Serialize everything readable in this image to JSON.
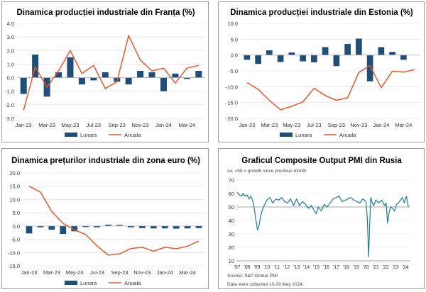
{
  "colors": {
    "bar": "#1f4e79",
    "line": "#e8572a",
    "pmi": "#1e7b8f",
    "grid": "#d9d9d9",
    "axis": "#b0b0b0"
  },
  "chart_data": [
    {
      "type": "bar+line",
      "title": "Dinamica producției industriale din Franța (%)",
      "categories": [
        "Jan-23",
        "Feb-23",
        "Mar-23",
        "Apr-23",
        "May-23",
        "Jun-23",
        "Jul-23",
        "Aug-23",
        "Sep-23",
        "Oct-23",
        "Nov-23",
        "Dec-23",
        "Jan-24",
        "Feb-24",
        "Mar-24",
        "Apr-24"
      ],
      "x_tick_labels": [
        "Jan-23",
        "Mar-23",
        "May-23",
        "Jul-23",
        "Sep-23",
        "Nov-23",
        "Jan-24",
        "Mar-24"
      ],
      "series": [
        {
          "name": "Lunara",
          "type": "bar",
          "values": [
            -1.2,
            1.7,
            -1.4,
            0.4,
            1.5,
            -0.5,
            -0.2,
            0.4,
            -0.3,
            -0.5,
            0.5,
            0.4,
            -1.0,
            0.3,
            -0.1,
            0.5
          ]
        },
        {
          "name": "Anuala",
          "type": "line",
          "values": [
            -2.4,
            0.8,
            -0.7,
            0.5,
            2.0,
            0.3,
            0.9,
            -0.8,
            -0.3,
            3.1,
            1.3,
            0.5,
            0.7,
            -0.4,
            0.7,
            0.9
          ]
        }
      ],
      "ylim": [
        -3.0,
        4.0
      ],
      "yticks": [
        -3.0,
        -2.0,
        -1.0,
        0.0,
        1.0,
        2.0,
        3.0,
        4.0
      ],
      "ytick_labels": [
        "-3.0",
        "-2.0",
        "-1.0",
        "0.0",
        "1.0",
        "2.0",
        "3.0",
        "4.0"
      ],
      "legend": [
        "Lunara",
        "Anuala"
      ]
    },
    {
      "type": "bar+line",
      "title": "Dinamica producției industriale din Estonia (%)",
      "categories": [
        "Jan-23",
        "Feb-23",
        "Mar-23",
        "Apr-23",
        "May-23",
        "Jun-23",
        "Jul-23",
        "Aug-23",
        "Sep-23",
        "Oct-23",
        "Nov-23",
        "Dec-23",
        "Jan-24",
        "Feb-24",
        "Mar-24",
        "Apr-24"
      ],
      "x_tick_labels": [
        "Jan-23",
        "Mar-23",
        "May-23",
        "Jul-23",
        "Sep-23",
        "Nov-23",
        "Jan-24",
        "Mar-24"
      ],
      "series": [
        {
          "name": "Lunara",
          "type": "bar",
          "values": [
            -1.5,
            -2.8,
            1.5,
            -2.2,
            0.8,
            -2.0,
            -2.3,
            2.5,
            -3.5,
            3.5,
            5.2,
            -8.3,
            2.5,
            1.0,
            -1.5,
            0
          ]
        },
        {
          "name": "Anuala",
          "type": "line",
          "values": [
            -8.7,
            -10.8,
            -14.3,
            -17.3,
            -16.2,
            -14.8,
            -10.5,
            -12.8,
            -14.3,
            -13.5,
            -5.5,
            -3.3,
            -10.3,
            -5.1,
            -5.4,
            -4.6
          ]
        }
      ],
      "ylim": [
        -20.0,
        10.0
      ],
      "yticks": [
        -20.0,
        -15.0,
        -10.0,
        -5.0,
        0.0,
        5.0,
        10.0
      ],
      "ytick_labels": [
        "-20.0",
        "-15.0",
        "-10.0",
        "-5.0",
        "0.0",
        "5.0",
        "10.0"
      ],
      "legend": [
        "Lunara",
        "Anuala"
      ]
    },
    {
      "type": "bar+line",
      "title": "Dinamica prețurilor industriale din zona euro (%)",
      "categories": [
        "Jan-23",
        "Feb-23",
        "Mar-23",
        "Apr-23",
        "May-23",
        "Jun-23",
        "Jul-23",
        "Aug-23",
        "Sep-23",
        "Oct-23",
        "Nov-23",
        "Dec-23",
        "Jan-24",
        "Feb-24",
        "Mar-24",
        "Apr-24"
      ],
      "x_tick_labels": [
        "Jan-23",
        "Mar-23",
        "May-23",
        "Jul-23",
        "Sep-23",
        "Nov-23",
        "Jan-24",
        "Mar-24"
      ],
      "series": [
        {
          "name": "Lunara",
          "type": "bar",
          "values": [
            -2.8,
            -0.5,
            -1.4,
            -3.0,
            -2.0,
            -0.4,
            -0.5,
            0.5,
            0.4,
            -0.5,
            -0.8,
            -0.9,
            -0.9,
            -1.0,
            -0.9,
            -0.8
          ]
        },
        {
          "name": "Anuala",
          "type": "line",
          "values": [
            15.0,
            12.8,
            5.5,
            1.0,
            -1.5,
            -3.2,
            -7.5,
            -11.0,
            -10.5,
            -8.5,
            -8.0,
            -9.5,
            -8.0,
            -8.6,
            -7.6,
            -5.7
          ]
        }
      ],
      "ylim": [
        -15.0,
        20.0
      ],
      "yticks": [
        -15.0,
        -10.0,
        -5.0,
        0.0,
        5.0,
        10.0,
        15.0,
        20.0
      ],
      "ytick_labels": [
        "-15.0",
        "-10.0",
        "-5.0",
        "0.0",
        "5.0",
        "10.0",
        "15.0",
        "20.0"
      ],
      "legend": [
        "Lunara",
        "Anuala"
      ]
    },
    {
      "type": "line",
      "title": "Graficul Composite Output PMI din Rusia",
      "subtitle": "sa, >50 = growth since previous month",
      "xlim": [
        2007,
        2024.5
      ],
      "x_tick_values": [
        2007,
        2008,
        2009,
        2010,
        2011,
        2012,
        2013,
        2014,
        2015,
        2016,
        2017,
        2018,
        2019,
        2020,
        2021,
        2022,
        2023,
        2024
      ],
      "x_tick_labels": [
        "'07",
        "'08",
        "'09",
        "'10",
        "'11",
        "'12",
        "'13",
        "'14",
        "'15",
        "'16",
        "'17",
        "'18",
        "'19",
        "'20",
        "'21",
        "'22",
        "'23",
        "'24"
      ],
      "ylim": [
        10,
        70
      ],
      "yticks": [
        10,
        20,
        30,
        40,
        50,
        60,
        70
      ],
      "ytick_labels": [
        "10",
        "20",
        "30",
        "40",
        "50",
        "60",
        "70"
      ],
      "reference_line": 50,
      "series": [
        {
          "name": "Composite Output PMI",
          "x": [
            2007.0,
            2007.2,
            2007.4,
            2007.6,
            2007.8,
            2008.0,
            2008.2,
            2008.4,
            2008.6,
            2008.75,
            2008.85,
            2008.95,
            2009.05,
            2009.2,
            2009.4,
            2009.6,
            2009.8,
            2010.0,
            2010.3,
            2010.6,
            2010.9,
            2011.2,
            2011.5,
            2011.8,
            2012.1,
            2012.4,
            2012.7,
            2013.0,
            2013.3,
            2013.6,
            2013.9,
            2014.2,
            2014.5,
            2014.8,
            2015.0,
            2015.2,
            2015.5,
            2015.8,
            2016.1,
            2016.4,
            2016.7,
            2017.0,
            2017.3,
            2017.6,
            2017.9,
            2018.2,
            2018.5,
            2018.8,
            2019.1,
            2019.4,
            2019.7,
            2020.0,
            2020.15,
            2020.28,
            2020.38,
            2020.5,
            2020.65,
            2020.8,
            2021.0,
            2021.3,
            2021.6,
            2021.9,
            2022.05,
            2022.2,
            2022.35,
            2022.5,
            2022.7,
            2022.9,
            2023.1,
            2023.3,
            2023.5,
            2023.7,
            2023.9,
            2024.1,
            2024.3
          ],
          "y": [
            61,
            59,
            58,
            60,
            58,
            59,
            56,
            58,
            54,
            48,
            42,
            38,
            33,
            36,
            44,
            49,
            52,
            55,
            57,
            53,
            56,
            55,
            57,
            54,
            53,
            56,
            51,
            56,
            51,
            54,
            52,
            49,
            51,
            47,
            45,
            50,
            47,
            52,
            50,
            53,
            56,
            57,
            58,
            54,
            55,
            56,
            57,
            55,
            54,
            53,
            56,
            54,
            42,
            13,
            36,
            57,
            53,
            51,
            55,
            53,
            55,
            51,
            53,
            38,
            46,
            50,
            49,
            47,
            52,
            53,
            55,
            57,
            53,
            58,
            50
          ]
        }
      ]
    }
  ],
  "legend_labels": {
    "monthly": "Lunara",
    "annual": "Anuala"
  },
  "source": "Source: S&P Global PMI.",
  "collected": "Data were collected 10-29 May 2024."
}
